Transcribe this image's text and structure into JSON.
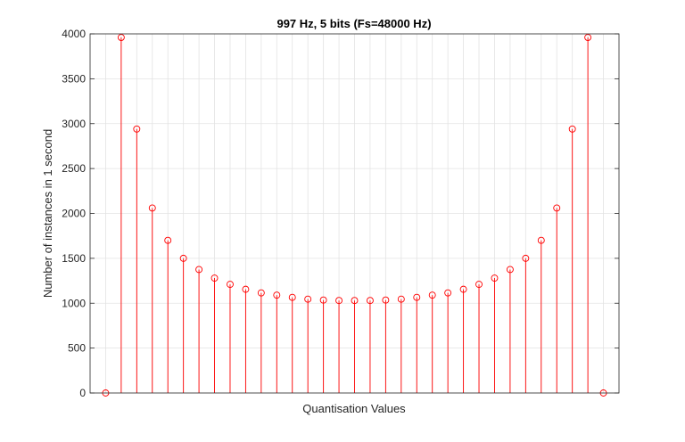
{
  "chart_data": {
    "type": "stem",
    "title": "997 Hz, 5 bits (Fs=48000 Hz)",
    "xlabel": "Quantisation Values",
    "ylabel": "Number of instances in 1 second",
    "ylim": [
      0,
      4000
    ],
    "yticks": [
      "0",
      "500",
      "1000",
      "1500",
      "2000",
      "2500",
      "3000",
      "3500",
      "4000"
    ],
    "xlim": [
      -1,
      33
    ],
    "grid": true,
    "marker": "circle",
    "color": "#ff0000",
    "x": [
      0,
      1,
      2,
      3,
      4,
      5,
      6,
      7,
      8,
      9,
      10,
      11,
      12,
      13,
      14,
      15,
      16,
      17,
      18,
      19,
      20,
      21,
      22,
      23,
      24,
      25,
      26,
      27,
      28,
      29,
      30,
      31,
      32
    ],
    "values": [
      0,
      3960,
      2940,
      2060,
      1700,
      1500,
      1375,
      1280,
      1210,
      1155,
      1115,
      1090,
      1065,
      1045,
      1035,
      1030,
      1030,
      1030,
      1035,
      1045,
      1065,
      1090,
      1115,
      1155,
      1210,
      1280,
      1375,
      1500,
      1700,
      2060,
      2940,
      3960,
      0
    ]
  }
}
